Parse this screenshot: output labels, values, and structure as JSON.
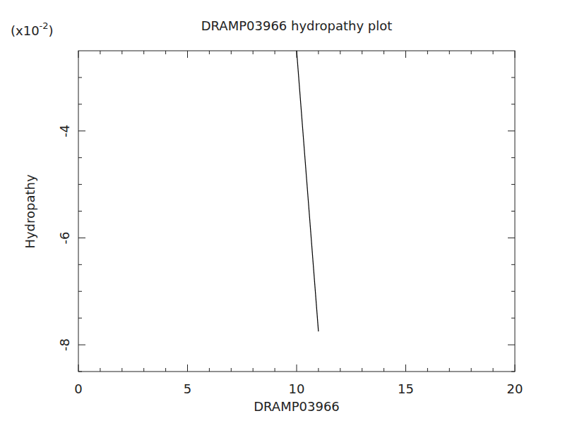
{
  "chart_data": {
    "type": "line",
    "title": "DRAMP03966 hydropathy plot",
    "x_label": "DRAMP03966",
    "y_label": "Hydropathy",
    "y_multiplier": [
      "(x10",
      "-2",
      ")"
    ],
    "x": [
      10,
      11
    ],
    "values": [
      -2.5,
      -7.75
    ],
    "color": "#000000",
    "xlim": [
      0,
      20
    ],
    "xticks": [
      0,
      5,
      10,
      15,
      20
    ],
    "xticks_minor": [
      1,
      2,
      3,
      4,
      6,
      7,
      8,
      9,
      11,
      12,
      13,
      14,
      16,
      17,
      18,
      19
    ],
    "ylim": [
      -8.5,
      -2.5
    ],
    "yticks": [
      -8,
      -6,
      -4
    ],
    "yticks_minor": [
      -8.5,
      -7.5,
      -7,
      -6.5,
      -5.5,
      -5,
      -4.5,
      -3.5,
      -3
    ],
    "grid": false
  }
}
